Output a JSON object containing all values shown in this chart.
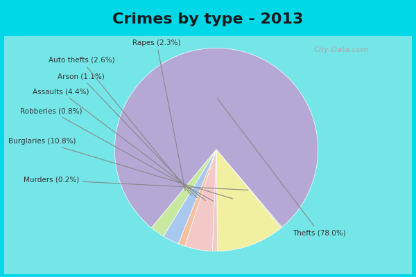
{
  "title": "Crimes by type - 2013",
  "slices": [
    {
      "label": "Thefts (78.0%)",
      "value": 78.0,
      "color": "#b5a8d5"
    },
    {
      "label": "Murders (0.2%)",
      "value": 0.2,
      "color": "#c8dfa8"
    },
    {
      "label": "Burglaries (10.8%)",
      "value": 10.8,
      "color": "#f0f0a0"
    },
    {
      "label": "Robberies (0.8%)",
      "value": 0.8,
      "color": "#f5c8c8"
    },
    {
      "label": "Assaults (4.4%)",
      "value": 4.4,
      "color": "#f5c8c8"
    },
    {
      "label": "Arson (1.1%)",
      "value": 1.1,
      "color": "#f5c0a0"
    },
    {
      "label": "Auto thefts (2.6%)",
      "value": 2.6,
      "color": "#a8c8f0"
    },
    {
      "label": "Rapes (2.3%)",
      "value": 2.3,
      "color": "#c8e8a0"
    }
  ],
  "bg_top": "#00d8e8",
  "bg_main": "#d8edd8",
  "title_color": "#1a1a1a",
  "title_fontsize": 16
}
